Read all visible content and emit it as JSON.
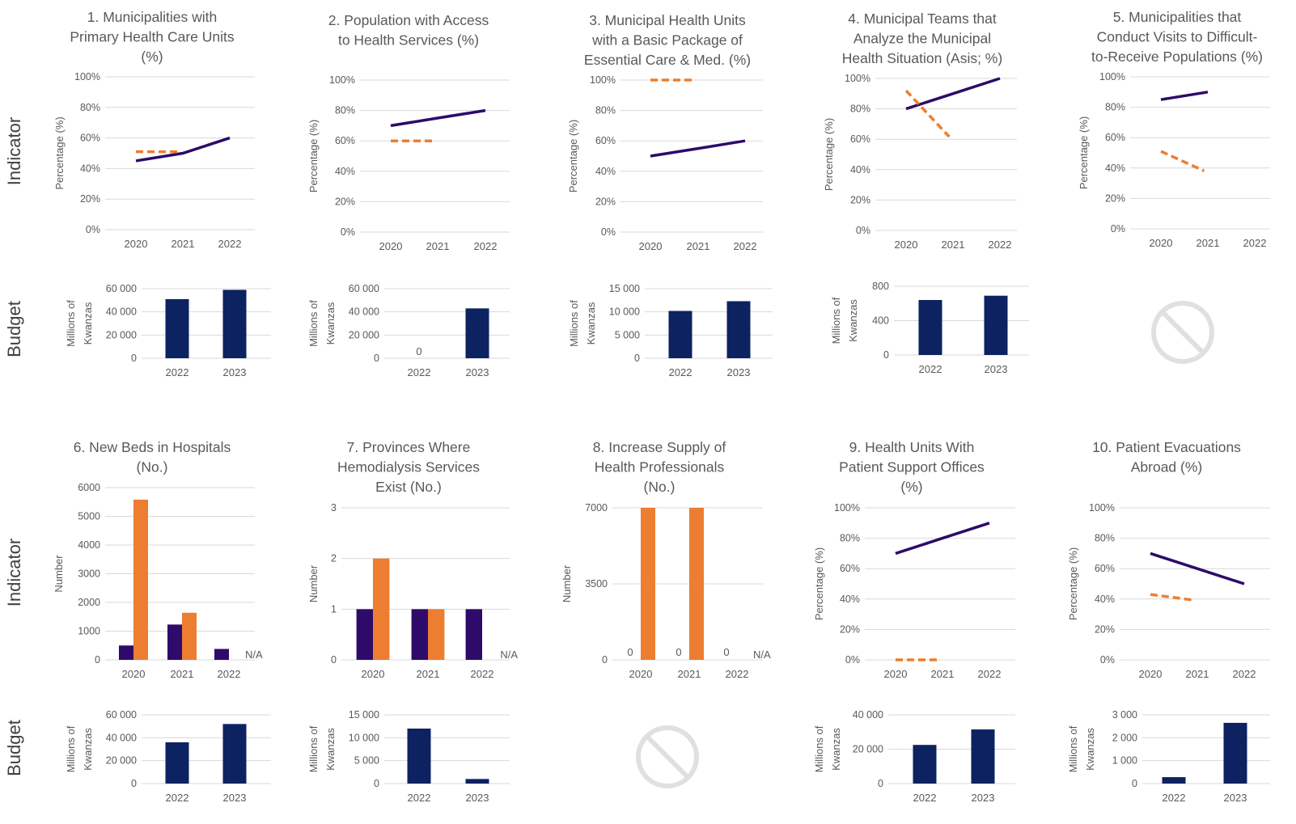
{
  "row_labels": {
    "indicator": "Indicator",
    "budget": "Budget"
  },
  "colors": {
    "actual": "#2e0a6b",
    "target": "#ed7d31",
    "budget": "#0d2260",
    "grid": "#d9d9d9",
    "text": "#595959",
    "no_data": "#e0e0e0"
  },
  "icons": {
    "no_data": "prohibited-icon"
  },
  "chart_data": [
    {
      "id": "ind1",
      "type": "line",
      "title_lines": [
        "1. Municipalities with",
        "Primary Health Care Units",
        "(%)"
      ],
      "ylabel": "Percentage (%)",
      "ylim": [
        0,
        100
      ],
      "yticks": [
        "0%",
        "20%",
        "40%",
        "60%",
        "80%",
        "100%"
      ],
      "categories": [
        "2020",
        "2021",
        "2022"
      ],
      "series": [
        {
          "role": "actual",
          "values": [
            45,
            50,
            60
          ]
        },
        {
          "role": "target",
          "values": [
            51,
            51,
            null
          ]
        }
      ]
    },
    {
      "id": "ind2",
      "type": "line",
      "title_lines": [
        "2. Population with Access",
        "to Health Services (%)"
      ],
      "ylabel": "Percentage (%)",
      "ylim": [
        0,
        100
      ],
      "yticks": [
        "0%",
        "20%",
        "40%",
        "60%",
        "80%",
        "100%"
      ],
      "categories": [
        "2020",
        "2021",
        "2022"
      ],
      "series": [
        {
          "role": "actual",
          "values": [
            70,
            75,
            80
          ]
        },
        {
          "role": "target",
          "values": [
            60,
            60,
            null
          ]
        }
      ]
    },
    {
      "id": "ind3",
      "type": "line",
      "title_lines": [
        "3. Municipal Health Units",
        "with a Basic Package of",
        "Essential Care & Med. (%)"
      ],
      "ylabel": "Percentage (%)",
      "ylim": [
        0,
        100
      ],
      "yticks": [
        "0%",
        "20%",
        "40%",
        "60%",
        "80%",
        "100%"
      ],
      "categories": [
        "2020",
        "2021",
        "2022"
      ],
      "series": [
        {
          "role": "actual",
          "values": [
            50,
            55,
            60
          ]
        },
        {
          "role": "target",
          "values": [
            100,
            100,
            null
          ]
        }
      ]
    },
    {
      "id": "ind4",
      "type": "line",
      "title_lines": [
        "4. Municipal Teams that",
        "Analyze the Municipal",
        "Health Situation (Asis; %)"
      ],
      "ylabel": "Percentage (%)",
      "ylim": [
        0,
        100
      ],
      "yticks": [
        "0%",
        "20%",
        "40%",
        "60%",
        "80%",
        "100%"
      ],
      "categories": [
        "2020",
        "2021",
        "2022"
      ],
      "series": [
        {
          "role": "actual",
          "values": [
            80,
            90,
            100
          ]
        },
        {
          "role": "target",
          "values": [
            92,
            59,
            null
          ]
        }
      ]
    },
    {
      "id": "ind5",
      "type": "line",
      "title_lines": [
        "5. Municipalities that",
        "Conduct Visits to Difficult-",
        "to-Receive Populations (%)"
      ],
      "ylabel": "Percentage (%)",
      "ylim": [
        0,
        100
      ],
      "yticks": [
        "0%",
        "20%",
        "40%",
        "60%",
        "80%",
        "100%"
      ],
      "categories": [
        "2020",
        "2021",
        "2022"
      ],
      "series": [
        {
          "role": "actual",
          "values": [
            85,
            90,
            null
          ]
        },
        {
          "role": "target",
          "values": [
            51,
            37,
            null
          ]
        }
      ]
    },
    {
      "id": "ind6",
      "type": "bar",
      "title_lines": [
        "6. New Beds in Hospitals",
        "(No.)"
      ],
      "ylabel": "Number",
      "ylim": [
        0,
        6000
      ],
      "yticks": [
        "0",
        "1000",
        "2000",
        "3000",
        "4000",
        "5000",
        "6000"
      ],
      "categories": [
        "2020",
        "2021",
        "2022"
      ],
      "series": [
        {
          "role": "actual",
          "values": [
            500,
            1230,
            380
          ]
        },
        {
          "role": "target",
          "values": [
            5580,
            1640,
            null
          ]
        }
      ],
      "value_labels": [
        "",
        "",
        "N/A"
      ]
    },
    {
      "id": "ind7",
      "type": "bar",
      "title_lines": [
        "7. Provinces Where",
        "Hemodialysis Services",
        "Exist (No.)"
      ],
      "ylabel": "Number",
      "ylim": [
        0,
        3
      ],
      "yticks": [
        "0",
        "1",
        "2",
        "3"
      ],
      "categories": [
        "2020",
        "2021",
        "2022"
      ],
      "series": [
        {
          "role": "actual",
          "values": [
            1,
            1,
            1
          ]
        },
        {
          "role": "target",
          "values": [
            2,
            1,
            null
          ]
        }
      ],
      "value_labels": [
        "",
        "",
        "N/A"
      ]
    },
    {
      "id": "ind8",
      "type": "bar",
      "title_lines": [
        "8. Increase Supply of",
        "Health Professionals",
        "(No.)"
      ],
      "ylabel": "Number",
      "ylim": [
        0,
        7000
      ],
      "yticks": [
        "0",
        "3500",
        "7000"
      ],
      "categories": [
        "2020",
        "2021",
        "2022"
      ],
      "series": [
        {
          "role": "actual",
          "values": [
            0,
            0,
            0
          ]
        },
        {
          "role": "target",
          "values": [
            7000,
            7000,
            null
          ]
        }
      ],
      "zero_labels": [
        "0",
        "0",
        "0"
      ],
      "value_labels": [
        "",
        "",
        "N/A"
      ]
    },
    {
      "id": "ind9",
      "type": "line",
      "title_lines": [
        "9. Health Units With",
        "Patient Support Offices",
        "(%)"
      ],
      "ylabel": "Percentage (%)",
      "ylim": [
        0,
        100
      ],
      "yticks": [
        "0%",
        "20%",
        "40%",
        "60%",
        "80%",
        "100%"
      ],
      "categories": [
        "2020",
        "2021",
        "2022"
      ],
      "series": [
        {
          "role": "actual",
          "values": [
            70,
            80,
            90
          ]
        },
        {
          "role": "target",
          "values": [
            0,
            0,
            null
          ]
        }
      ]
    },
    {
      "id": "ind10",
      "type": "line",
      "title_lines": [
        "10. Patient Evacuations",
        "Abroad (%)"
      ],
      "ylabel": "Percentage (%)",
      "ylim": [
        0,
        100
      ],
      "yticks": [
        "0%",
        "20%",
        "40%",
        "60%",
        "80%",
        "100%"
      ],
      "categories": [
        "2020",
        "2021",
        "2022"
      ],
      "series": [
        {
          "role": "actual",
          "values": [
            70,
            60,
            50
          ]
        },
        {
          "role": "target",
          "values": [
            43,
            39,
            null
          ]
        }
      ]
    },
    {
      "id": "bud1",
      "type": "bar",
      "ylabel": [
        "Millions of",
        "Kwanzas"
      ],
      "ylim": [
        0,
        60000
      ],
      "yticks": [
        "0",
        "20 000",
        "40 000",
        "60 000"
      ],
      "categories": [
        "2022",
        "2023"
      ],
      "values": [
        51000,
        59000
      ]
    },
    {
      "id": "bud2",
      "type": "bar",
      "ylabel": [
        "Millions of",
        "Kwanzas"
      ],
      "ylim": [
        0,
        60000
      ],
      "yticks": [
        "0",
        "20 000",
        "40 000",
        "60 000"
      ],
      "categories": [
        "2022",
        "2023"
      ],
      "values": [
        0,
        43000
      ],
      "zero_labels": [
        "0",
        ""
      ]
    },
    {
      "id": "bud3",
      "type": "bar",
      "ylabel": [
        "Millions of",
        "Kwanzas"
      ],
      "ylim": [
        0,
        15000
      ],
      "yticks": [
        "0",
        "5 000",
        "10 000",
        "15 000"
      ],
      "categories": [
        "2022",
        "2023"
      ],
      "values": [
        10200,
        12300
      ]
    },
    {
      "id": "bud4",
      "type": "bar",
      "ylabel": [
        "Millions of",
        "Kwanzas"
      ],
      "ylim": [
        0,
        800
      ],
      "yticks": [
        "0",
        "400",
        "800"
      ],
      "categories": [
        "2022",
        "2023"
      ],
      "values": [
        640,
        690
      ]
    },
    {
      "id": "bud5",
      "type": "none"
    },
    {
      "id": "bud6",
      "type": "bar",
      "ylabel": [
        "Millions of",
        "Kwanzas"
      ],
      "ylim": [
        0,
        60000
      ],
      "yticks": [
        "0",
        "20 000",
        "40 000",
        "60 000"
      ],
      "categories": [
        "2022",
        "2023"
      ],
      "values": [
        36000,
        52000
      ]
    },
    {
      "id": "bud7",
      "type": "bar",
      "ylabel": [
        "Millions of",
        "Kwanzas"
      ],
      "ylim": [
        0,
        15000
      ],
      "yticks": [
        "0",
        "5 000",
        "10 000",
        "15 000"
      ],
      "categories": [
        "2022",
        "2023"
      ],
      "values": [
        12000,
        1000
      ]
    },
    {
      "id": "bud8",
      "type": "none"
    },
    {
      "id": "bud9",
      "type": "bar",
      "ylabel": [
        "Millions of",
        "Kwanzas"
      ],
      "ylim": [
        0,
        40000
      ],
      "yticks": [
        "0",
        "20 000",
        "40 000"
      ],
      "categories": [
        "2022",
        "2023"
      ],
      "values": [
        22500,
        31500
      ]
    },
    {
      "id": "bud10",
      "type": "bar",
      "ylabel": [
        "Millions of",
        "Kwanzas"
      ],
      "ylim": [
        0,
        3000
      ],
      "yticks": [
        "0",
        "1 000",
        "2 000",
        "3 000"
      ],
      "categories": [
        "2022",
        "2023"
      ],
      "values": [
        280,
        2650
      ]
    }
  ]
}
